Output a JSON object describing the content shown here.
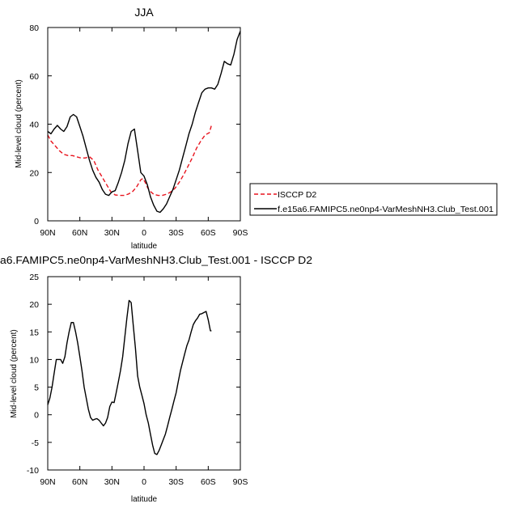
{
  "chart_data": [
    {
      "type": "line",
      "title": "JJA",
      "xlabel": "latitude",
      "ylabel": "Mid-level cloud (percent)",
      "xlim": [
        -90,
        90
      ],
      "ylim": [
        0,
        80
      ],
      "x_ticks": [
        {
          "value": -90,
          "label": "90N"
        },
        {
          "value": -60,
          "label": "60N"
        },
        {
          "value": -30,
          "label": "30N"
        },
        {
          "value": 0,
          "label": "0"
        },
        {
          "value": 30,
          "label": "30S"
        },
        {
          "value": 60,
          "label": "60S"
        },
        {
          "value": 90,
          "label": "90S"
        }
      ],
      "y_ticks": [
        {
          "value": 0,
          "label": "0"
        },
        {
          "value": 20,
          "label": "20"
        },
        {
          "value": 40,
          "label": "40"
        },
        {
          "value": 60,
          "label": "60"
        },
        {
          "value": 80,
          "label": "80"
        }
      ],
      "legend": "right",
      "series": [
        {
          "name": "ISCCP D2",
          "color": "#e8141e",
          "dash": "dashed",
          "x": [
            -90,
            -87,
            -83,
            -79,
            -75,
            -71,
            -67,
            -63,
            -59,
            -55,
            -51,
            -47,
            -43,
            -39,
            -35,
            -31,
            -27,
            -23,
            -19,
            -15,
            -11,
            -7,
            -3,
            -1,
            1,
            3,
            5,
            9,
            13,
            17,
            21,
            25,
            29,
            33,
            37,
            41,
            45,
            49,
            53,
            57,
            61,
            63
          ],
          "y": [
            35.5,
            33,
            31,
            29,
            27.5,
            27,
            27,
            26.5,
            26,
            26,
            26.5,
            25,
            21,
            18,
            15,
            12,
            10.7,
            10.5,
            10.5,
            11,
            12,
            14,
            17,
            17.5,
            16,
            14,
            12.5,
            11,
            10.5,
            10.5,
            11,
            12,
            13.5,
            16,
            19,
            22.5,
            26,
            30,
            33,
            35.5,
            36.5,
            39.5
          ]
        },
        {
          "name": "f.e15a6.FAMIPC5.ne0np4-VarMeshNH3.Club_Test.001",
          "color": "#000000",
          "dash": "solid",
          "x": [
            -90,
            -87,
            -84,
            -81,
            -78,
            -75,
            -72,
            -69,
            -66,
            -63,
            -60,
            -57,
            -54,
            -51,
            -48,
            -45,
            -42,
            -39,
            -36,
            -33,
            -30,
            -27,
            -24,
            -21,
            -18,
            -15,
            -12,
            -9,
            -6,
            -3,
            0,
            3,
            6,
            9,
            12,
            15,
            18,
            21,
            24,
            27,
            30,
            33,
            36,
            39,
            42,
            45,
            48,
            51,
            54,
            57,
            60,
            63,
            66,
            69,
            72,
            75,
            78,
            81,
            84,
            87,
            90
          ],
          "y": [
            37,
            36,
            38,
            39.5,
            38,
            37,
            39,
            43,
            44,
            43,
            39,
            35,
            30,
            25,
            21,
            18,
            16,
            13,
            11,
            10.5,
            12,
            12.5,
            16,
            20,
            25,
            32,
            37,
            38,
            29,
            20,
            18.5,
            15,
            10,
            6.5,
            4,
            3.5,
            5,
            7,
            10,
            13,
            17,
            21,
            26,
            31,
            36,
            40,
            45,
            49,
            53,
            54.5,
            55,
            55,
            54.5,
            56.5,
            61,
            66,
            65,
            64.5,
            69,
            75,
            78.5
          ]
        }
      ]
    },
    {
      "type": "line",
      "title": "a6.FAMIPC5.ne0np4-VarMeshNH3.Club_Test.001 - ISCCP D2",
      "xlabel": "latitude",
      "ylabel": "Mid-level cloud (percent)",
      "xlim": [
        -90,
        90
      ],
      "ylim": [
        -10,
        25
      ],
      "x_ticks": [
        {
          "value": -90,
          "label": "90N"
        },
        {
          "value": -60,
          "label": "60N"
        },
        {
          "value": -30,
          "label": "30N"
        },
        {
          "value": 0,
          "label": "0"
        },
        {
          "value": 30,
          "label": "30S"
        },
        {
          "value": 60,
          "label": "60S"
        },
        {
          "value": 90,
          "label": "90S"
        }
      ],
      "y_ticks": [
        {
          "value": -10,
          "label": "-10"
        },
        {
          "value": -5,
          "label": "-5"
        },
        {
          "value": 0,
          "label": "0"
        },
        {
          "value": 5,
          "label": "5"
        },
        {
          "value": 10,
          "label": "10"
        },
        {
          "value": 15,
          "label": "15"
        },
        {
          "value": 20,
          "label": "20"
        },
        {
          "value": 25,
          "label": "25"
        }
      ],
      "series": [
        {
          "color": "#000000",
          "dash": "solid",
          "x": [
            -90,
            -88,
            -86,
            -84,
            -82,
            -80,
            -78,
            -76,
            -74,
            -72,
            -70,
            -68,
            -66,
            -64,
            -62,
            -60,
            -58,
            -56,
            -54,
            -52,
            -50,
            -48,
            -46,
            -44,
            -42,
            -40,
            -38,
            -36,
            -34,
            -32,
            -30,
            -28,
            -26,
            -24,
            -22,
            -20,
            -18,
            -16,
            -14,
            -12,
            -10,
            -8,
            -6,
            -4,
            -2,
            0,
            2,
            4,
            6,
            8,
            10,
            12,
            14,
            16,
            18,
            20,
            22,
            24,
            26,
            28,
            30,
            32,
            34,
            36,
            38,
            40,
            42,
            44,
            46,
            48,
            50,
            52,
            54,
            56,
            58,
            60,
            62,
            63
          ],
          "y": [
            1.8,
            3,
            5,
            7.5,
            10,
            10,
            10,
            9.3,
            10.5,
            13,
            15,
            16.7,
            16.7,
            15,
            13,
            10.5,
            8,
            5,
            3,
            1,
            -0.5,
            -1,
            -0.8,
            -0.7,
            -1,
            -1.5,
            -2,
            -1.5,
            -0.5,
            1.5,
            2.3,
            2.2,
            4,
            6,
            8,
            10.5,
            14,
            17.5,
            20.7,
            20.3,
            16,
            12,
            7,
            5,
            3.5,
            2,
            0,
            -1.5,
            -3.5,
            -5.5,
            -7,
            -7.2,
            -6.5,
            -5.5,
            -4.5,
            -3.5,
            -2,
            -0.5,
            1,
            2.5,
            4,
            6,
            8,
            9.5,
            11,
            12.5,
            13.5,
            15,
            16.3,
            17,
            17.5,
            18.2,
            18.3,
            18.5,
            18.7,
            17.2,
            15.2,
            15.2
          ]
        }
      ]
    }
  ]
}
